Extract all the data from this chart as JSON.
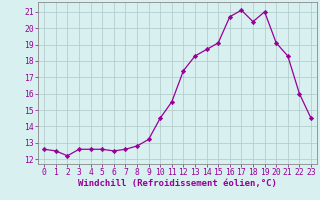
{
  "x": [
    0,
    1,
    2,
    3,
    4,
    5,
    6,
    7,
    8,
    9,
    10,
    11,
    12,
    13,
    14,
    15,
    16,
    17,
    18,
    19,
    20,
    21,
    22,
    23
  ],
  "y": [
    12.6,
    12.5,
    12.2,
    12.6,
    12.6,
    12.6,
    12.5,
    12.6,
    12.8,
    13.2,
    14.5,
    15.5,
    17.4,
    18.3,
    18.7,
    19.1,
    20.7,
    21.1,
    20.4,
    21.0,
    19.1,
    18.3,
    16.0,
    14.5
  ],
  "line_color": "#990099",
  "marker": "D",
  "markersize": 2.2,
  "linewidth": 0.9,
  "xlabel": "Windchill (Refroidissement éolien,°C)",
  "xlabel_fontsize": 6.5,
  "xlabel_color": "#990099",
  "ylabel_ticks": [
    12,
    13,
    14,
    15,
    16,
    17,
    18,
    19,
    20,
    21
  ],
  "xtick_labels": [
    "0",
    "1",
    "2",
    "3",
    "4",
    "5",
    "6",
    "7",
    "8",
    "9",
    "10",
    "11",
    "12",
    "13",
    "14",
    "15",
    "16",
    "17",
    "18",
    "19",
    "20",
    "21",
    "22",
    "23"
  ],
  "ylim": [
    11.7,
    21.6
  ],
  "xlim": [
    -0.5,
    23.5
  ],
  "bg_color": "#d8f0f0",
  "grid_color": "#aec8c8",
  "tick_color": "#990099",
  "tick_fontsize": 5.8,
  "spine_color": "#888888"
}
